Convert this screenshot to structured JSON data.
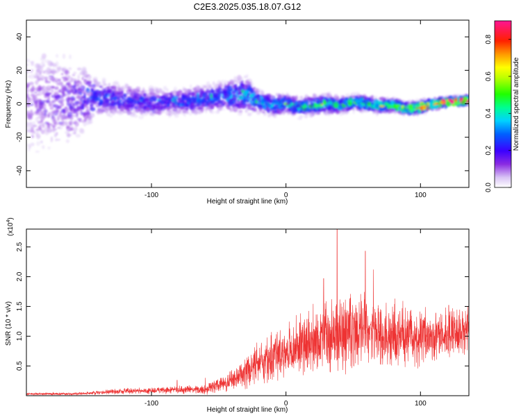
{
  "title": "C2E3.2025.035.18.07.G12",
  "colors": {
    "snr_line": "#ee3333",
    "axis": "#000000",
    "background": "#ffffff"
  },
  "chart_data": [
    {
      "type": "heatmap",
      "id": "spectrogram",
      "xlabel": "Height of straight line (km)",
      "ylabel": "Frequency (Hz)",
      "xlim": [
        -193,
        136
      ],
      "ylim": [
        -50,
        50
      ],
      "x_ticks": [
        -100,
        0,
        100
      ],
      "x_tick_labels": [
        "-100",
        "0",
        "100"
      ],
      "y_ticks": [
        -40,
        -20,
        0,
        20,
        40
      ],
      "y_tick_labels": [
        "-40",
        "-20",
        "0",
        "20",
        "40"
      ],
      "colorbar": {
        "label": "Normalized spectral amplitude",
        "range": [
          0.0,
          0.9
        ],
        "ticks": [
          0.0,
          0.2,
          0.4,
          0.6,
          0.8
        ],
        "tick_labels": [
          "0.0",
          "0.2",
          "0.4",
          "0.6",
          "0.8"
        ],
        "colormap": "rainbow"
      },
      "ridge": {
        "x": [
          -193,
          -160,
          -140,
          -120,
          -100,
          -80,
          -60,
          -40,
          -30,
          -20,
          -10,
          0,
          10,
          20,
          30,
          40,
          50,
          60,
          70,
          80,
          90,
          100,
          110,
          120,
          136
        ],
        "center_hz": [
          0,
          2,
          4,
          2,
          1,
          1,
          3,
          5,
          6,
          1,
          -1,
          0,
          -2,
          -1,
          0,
          -1,
          1,
          0,
          -1,
          -1,
          -3,
          -2,
          0,
          1,
          2
        ],
        "half_width_hz": [
          40,
          30,
          12,
          10,
          10,
          9,
          9,
          10,
          12,
          7,
          7,
          6,
          6,
          6,
          6,
          5,
          5,
          5,
          5,
          4,
          4,
          4,
          3,
          3,
          3
        ],
        "peak_amplitude": [
          0.12,
          0.18,
          0.25,
          0.24,
          0.22,
          0.24,
          0.28,
          0.32,
          0.35,
          0.34,
          0.36,
          0.38,
          0.42,
          0.44,
          0.45,
          0.44,
          0.46,
          0.45,
          0.44,
          0.5,
          0.6,
          0.72,
          0.8,
          0.85,
          0.82
        ]
      }
    },
    {
      "type": "line",
      "id": "snr",
      "xlabel": "Height of straight line (km)",
      "ylabel": "SNR (10 * v/v)",
      "y_scale_label": "(x10",
      "y_scale_exponent": "4",
      "y_scale_close": ")",
      "xlim": [
        -193,
        136
      ],
      "ylim": [
        0,
        2.8
      ],
      "x_ticks": [
        -100,
        0,
        100
      ],
      "x_tick_labels": [
        "-100",
        "0",
        "100"
      ],
      "y_ticks": [
        0.5,
        1.0,
        1.5,
        2.0,
        2.5
      ],
      "y_tick_labels": [
        "0.5",
        "1.0",
        "1.5",
        "2.0",
        "2.5"
      ],
      "envelope": {
        "x": [
          -193,
          -160,
          -140,
          -120,
          -100,
          -80,
          -60,
          -50,
          -40,
          -30,
          -20,
          -10,
          0,
          10,
          20,
          30,
          40,
          50,
          60,
          70,
          80,
          90,
          100,
          110,
          120,
          136
        ],
        "mean": [
          0.03,
          0.03,
          0.05,
          0.08,
          0.08,
          0.1,
          0.1,
          0.18,
          0.25,
          0.38,
          0.55,
          0.65,
          0.75,
          0.85,
          0.95,
          1.0,
          1.05,
          1.05,
          1.1,
          1.0,
          1.05,
          1.0,
          0.95,
          1.0,
          1.05,
          1.1
        ],
        "spread": [
          0.02,
          0.02,
          0.03,
          0.05,
          0.05,
          0.06,
          0.08,
          0.12,
          0.18,
          0.25,
          0.35,
          0.4,
          0.45,
          0.5,
          0.55,
          0.55,
          0.6,
          0.6,
          0.6,
          0.55,
          0.55,
          0.5,
          0.5,
          0.45,
          0.4,
          0.4
        ]
      },
      "spikes": [
        {
          "x": -81,
          "y": 0.26
        },
        {
          "x": -60,
          "y": 0.3
        },
        {
          "x": 28,
          "y": 1.97
        },
        {
          "x": 38,
          "y": 2.8
        },
        {
          "x": 59,
          "y": 2.43
        },
        {
          "x": 65,
          "y": 2.12
        },
        {
          "x": 121,
          "y": 1.52
        }
      ]
    }
  ]
}
